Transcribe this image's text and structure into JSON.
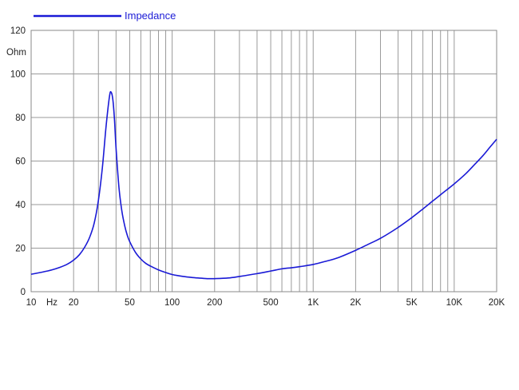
{
  "chart_data": {
    "type": "line",
    "title": "",
    "xlabel": "Hz",
    "ylabel": "Ohm",
    "x_scale": "log",
    "xlim": [
      10,
      20000
    ],
    "ylim": [
      0,
      120
    ],
    "grid": true,
    "legend_placement": "top-left",
    "x_ticks": [
      {
        "value": 10,
        "label": "10"
      },
      {
        "value": 20,
        "label": "20"
      },
      {
        "value": 50,
        "label": "50"
      },
      {
        "value": 100,
        "label": "100"
      },
      {
        "value": 200,
        "label": "200"
      },
      {
        "value": 500,
        "label": "500"
      },
      {
        "value": 1000,
        "label": "1K"
      },
      {
        "value": 2000,
        "label": "2K"
      },
      {
        "value": 5000,
        "label": "5K"
      },
      {
        "value": 10000,
        "label": "10K"
      },
      {
        "value": 20000,
        "label": "20K"
      }
    ],
    "y_ticks": [
      {
        "value": 0,
        "label": "0"
      },
      {
        "value": 20,
        "label": "20"
      },
      {
        "value": 40,
        "label": "40"
      },
      {
        "value": 60,
        "label": "60"
      },
      {
        "value": 80,
        "label": "80"
      },
      {
        "value": 100,
        "label": "100"
      },
      {
        "value": 120,
        "label": "120"
      }
    ],
    "series": [
      {
        "name": "Impedance",
        "color": "#1a1ad6",
        "x": [
          10,
          12,
          14,
          16,
          18,
          20,
          22,
          24,
          26,
          28,
          30,
          32,
          34,
          36,
          37,
          38,
          39,
          40,
          42,
          44,
          46,
          48,
          50,
          55,
          60,
          65,
          70,
          80,
          90,
          100,
          120,
          140,
          160,
          180,
          200,
          250,
          300,
          400,
          500,
          600,
          700,
          800,
          900,
          1000,
          1200,
          1500,
          2000,
          2500,
          3000,
          4000,
          5000,
          6000,
          7000,
          8000,
          10000,
          12000,
          14000,
          16000,
          18000,
          20000
        ],
        "y": [
          8,
          9,
          10,
          11.2,
          12.6,
          14.5,
          17,
          20.5,
          25,
          31.5,
          42,
          57,
          76,
          90,
          91.5,
          88,
          79,
          66,
          47.5,
          37,
          30.5,
          26,
          23,
          18,
          15,
          13,
          11.8,
          10,
          8.8,
          7.9,
          7,
          6.5,
          6.2,
          6,
          6,
          6.3,
          7,
          8.3,
          9.5,
          10.5,
          11,
          11.5,
          12,
          12.5,
          13.8,
          15.6,
          19,
          22,
          24.5,
          29.5,
          34,
          38,
          41.5,
          44.5,
          49.5,
          54,
          58.5,
          62.5,
          66.5,
          70
        ]
      }
    ]
  }
}
